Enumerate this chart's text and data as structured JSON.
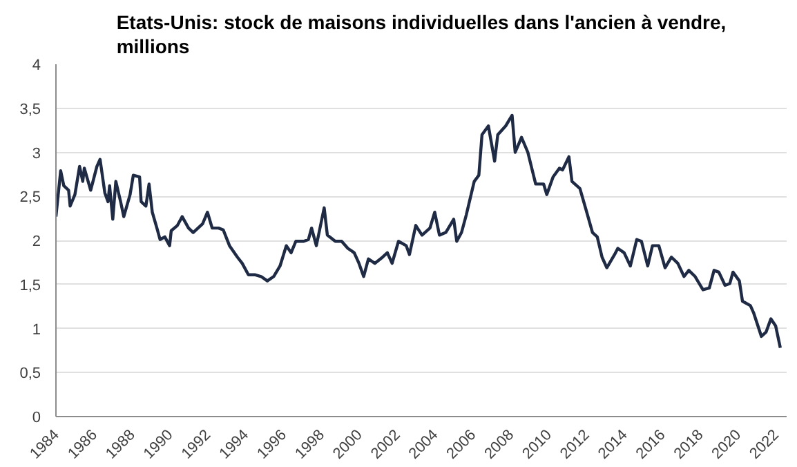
{
  "chart_data": {
    "type": "line",
    "title": "Etats-Unis: stock de maisons individuelles dans l'ancien à vendre, millions",
    "x": [
      "1984-01",
      "1984-04",
      "1984-06",
      "1984-09",
      "1984-10",
      "1985-01",
      "1985-04",
      "1985-06",
      "1985-07",
      "1985-11",
      "1986-03",
      "1986-05",
      "1986-08",
      "1986-10",
      "1986-11",
      "1987-01",
      "1987-03",
      "1987-06",
      "1987-08",
      "1987-12",
      "1988-02",
      "1988-06",
      "1988-07",
      "1988-10",
      "1988-12",
      "1989-02",
      "1989-05",
      "1989-07",
      "1989-10",
      "1990-01",
      "1990-02",
      "1990-06",
      "1990-09",
      "1991-01",
      "1991-04",
      "1991-10",
      "1992-01",
      "1992-04",
      "1992-08",
      "1992-11",
      "1993-03",
      "1993-08",
      "1993-11",
      "1994-03",
      "1994-07",
      "1994-11",
      "1995-03",
      "1995-07",
      "1995-11",
      "1996-03",
      "1996-06",
      "1996-09",
      "1997-02",
      "1997-05",
      "1997-07",
      "1997-10",
      "1998-03",
      "1998-05",
      "1998-10",
      "1999-02",
      "1999-06",
      "1999-10",
      "2000-01",
      "2000-04",
      "2000-07",
      "2000-11",
      "2001-04",
      "2001-07",
      "2001-10",
      "2002-02",
      "2002-07",
      "2002-09",
      "2003-01",
      "2003-05",
      "2003-10",
      "2004-01",
      "2004-04",
      "2004-08",
      "2005-01",
      "2005-03",
      "2005-06",
      "2005-09",
      "2006-02",
      "2006-05",
      "2006-07",
      "2006-11",
      "2007-03",
      "2007-05",
      "2007-10",
      "2008-02",
      "2008-04",
      "2008-08",
      "2008-12",
      "2009-05",
      "2009-10",
      "2009-12",
      "2010-04",
      "2010-08",
      "2010-10",
      "2011-02",
      "2011-04",
      "2011-09",
      "2012-01",
      "2012-05",
      "2012-08",
      "2012-11",
      "2013-02",
      "2013-07",
      "2013-09",
      "2014-01",
      "2014-05",
      "2014-09",
      "2014-12",
      "2015-04",
      "2015-07",
      "2015-11",
      "2016-03",
      "2016-07",
      "2016-11",
      "2017-03",
      "2017-06",
      "2017-10",
      "2018-03",
      "2018-07",
      "2018-10",
      "2019-01",
      "2019-05",
      "2019-08",
      "2019-10",
      "2020-02",
      "2020-04",
      "2020-09",
      "2020-11",
      "2021-04",
      "2021-07",
      "2021-10",
      "2022-01",
      "2022-04"
    ],
    "series": [
      {
        "color": "#1f2a44",
        "values": [
          2.27,
          2.79,
          2.62,
          2.57,
          2.39,
          2.52,
          2.84,
          2.67,
          2.82,
          2.57,
          2.84,
          2.92,
          2.54,
          2.44,
          2.62,
          2.24,
          2.67,
          2.44,
          2.27,
          2.52,
          2.74,
          2.72,
          2.44,
          2.39,
          2.64,
          2.32,
          2.14,
          2.01,
          2.04,
          1.94,
          2.11,
          2.17,
          2.27,
          2.14,
          2.09,
          2.19,
          2.32,
          2.14,
          2.14,
          2.12,
          1.94,
          1.81,
          1.74,
          1.61,
          1.61,
          1.59,
          1.54,
          1.59,
          1.71,
          1.94,
          1.86,
          1.99,
          1.99,
          2.01,
          2.14,
          1.94,
          2.37,
          2.06,
          1.99,
          1.99,
          1.91,
          1.86,
          1.74,
          1.59,
          1.79,
          1.74,
          1.81,
          1.86,
          1.74,
          1.99,
          1.94,
          1.84,
          2.17,
          2.06,
          2.14,
          2.32,
          2.06,
          2.09,
          2.24,
          1.99,
          2.09,
          2.29,
          2.67,
          2.74,
          3.2,
          3.3,
          2.9,
          3.2,
          3.3,
          3.42,
          3.0,
          3.17,
          3.0,
          2.64,
          2.64,
          2.52,
          2.72,
          2.82,
          2.8,
          2.95,
          2.67,
          2.59,
          2.34,
          2.09,
          2.04,
          1.81,
          1.69,
          1.84,
          1.91,
          1.86,
          1.71,
          2.01,
          1.99,
          1.71,
          1.94,
          1.94,
          1.69,
          1.81,
          1.74,
          1.59,
          1.66,
          1.59,
          1.44,
          1.46,
          1.66,
          1.64,
          1.49,
          1.51,
          1.64,
          1.54,
          1.31,
          1.26,
          1.18,
          0.91,
          0.96,
          1.11,
          1.03,
          0.78
        ]
      }
    ],
    "xlim": [
      "1984-01",
      "2022-08"
    ],
    "xticks": [
      "1984",
      "1986",
      "1988",
      "1990",
      "1992",
      "1994",
      "1996",
      "1998",
      "2000",
      "2002",
      "2004",
      "2006",
      "2008",
      "2010",
      "2012",
      "2014",
      "2016",
      "2018",
      "2020",
      "2022"
    ],
    "ylim": [
      0,
      4
    ],
    "yticks": [
      0,
      {
        "value": 0.5,
        "label": "0,5"
      },
      1,
      {
        "value": 1.5,
        "label": "1,5"
      },
      2,
      {
        "value": 2.5,
        "label": "2,5"
      },
      3,
      {
        "value": 3.5,
        "label": "3,5"
      },
      4
    ],
    "grid": "y",
    "line_style": "solid"
  }
}
